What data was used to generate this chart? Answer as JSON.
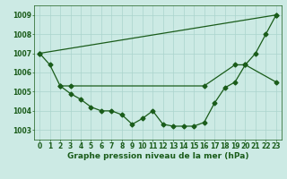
{
  "xlabel": "Graphe pression niveau de la mer (hPa)",
  "bg_color": "#cceae4",
  "grid_color": "#aad4cc",
  "line_color": "#1a5c1a",
  "ylim": [
    1002.5,
    1009.5
  ],
  "xlim": [
    -0.5,
    23.5
  ],
  "yticks": [
    1003,
    1004,
    1005,
    1006,
    1007,
    1008,
    1009
  ],
  "xticks": [
    0,
    1,
    2,
    3,
    4,
    5,
    6,
    7,
    8,
    9,
    10,
    11,
    12,
    13,
    14,
    15,
    16,
    17,
    18,
    19,
    20,
    21,
    22,
    23
  ],
  "line1_x": [
    0,
    1,
    2,
    3,
    4,
    5,
    6,
    7,
    8,
    9,
    10,
    11,
    12,
    13,
    14,
    15,
    16,
    17,
    18,
    19,
    20,
    21,
    22,
    23
  ],
  "line1_y": [
    1007.0,
    1006.4,
    1005.3,
    1004.9,
    1004.6,
    1004.2,
    1004.0,
    1004.0,
    1003.8,
    1003.3,
    1003.6,
    1004.0,
    1003.3,
    1003.2,
    1003.2,
    1003.2,
    1003.4,
    1004.4,
    1005.2,
    1005.5,
    1006.4,
    1007.0,
    1008.0,
    1009.0
  ],
  "line2_x": [
    0,
    23
  ],
  "line2_y": [
    1007.0,
    1009.0
  ],
  "line3_x": [
    2,
    3,
    16,
    19,
    20,
    23
  ],
  "line3_y": [
    1005.3,
    1005.3,
    1005.3,
    1006.4,
    1006.4,
    1005.5
  ],
  "markersize": 2.5,
  "linewidth": 0.9,
  "tick_fontsize": 5.5,
  "xlabel_fontsize": 6.5
}
